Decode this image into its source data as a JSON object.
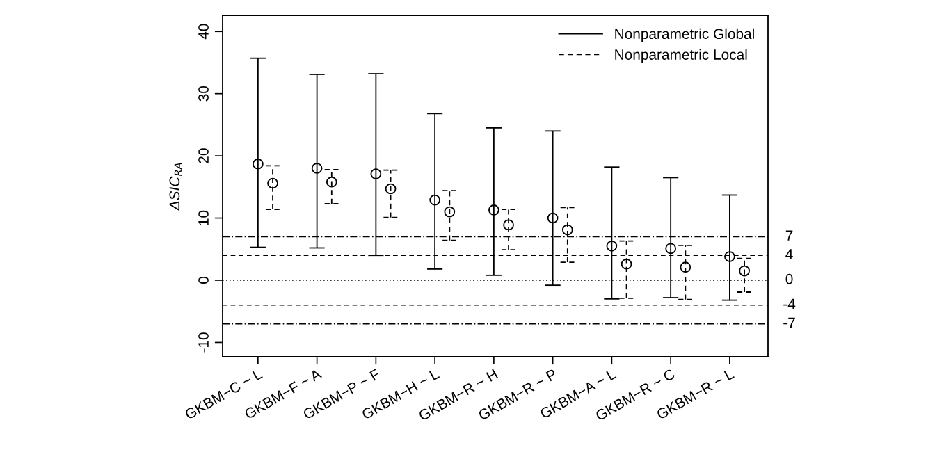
{
  "chart_data": {
    "type": "scatter",
    "categories": [
      "GKBM−C ~ L",
      "GKBM−F ~ A",
      "GKBM−P ~ F",
      "GKBM−H ~ L",
      "GKBM−R ~ H",
      "GKBM−R ~ P",
      "GKBM−A ~ L",
      "GKBM−R ~ C",
      "GKBM−R ~ L"
    ],
    "ylabel": "ΔSIC$_{RA}$",
    "ylim": [
      -12.3,
      42.6
    ],
    "yticks": [
      -10,
      0,
      10,
      20,
      30,
      40
    ],
    "marker": "circle",
    "legend": "top right",
    "grid": false,
    "series": [
      {
        "name": "Nonparametric Global",
        "color": "#000000",
        "line_style": "solid",
        "values": [
          18.7,
          18.0,
          17.1,
          12.9,
          11.3,
          10.0,
          5.5,
          5.1,
          3.8
        ],
        "errors": [
          [
            5.3,
            35.7
          ],
          [
            5.2,
            33.1
          ],
          [
            4.0,
            33.2
          ],
          [
            1.8,
            26.8
          ],
          [
            0.8,
            24.5
          ],
          [
            -0.8,
            24.0
          ],
          [
            -3.0,
            18.2
          ],
          [
            -2.8,
            16.5
          ],
          [
            -3.2,
            13.7
          ]
        ]
      },
      {
        "name": "Nonparametric Local",
        "color": "#000000",
        "line_style": "dashed",
        "values": [
          15.6,
          15.8,
          14.7,
          11.0,
          8.9,
          8.1,
          2.6,
          2.1,
          1.5
        ],
        "errors": [
          [
            11.4,
            18.4
          ],
          [
            12.3,
            17.8
          ],
          [
            10.1,
            17.7
          ],
          [
            6.4,
            14.4
          ],
          [
            4.9,
            11.4
          ],
          [
            2.9,
            11.7
          ],
          [
            -2.9,
            6.3
          ],
          [
            -3.1,
            5.6
          ],
          [
            -1.9,
            3.5
          ]
        ]
      }
    ],
    "ref_lines": [
      {
        "axis": "y",
        "value": 7,
        "label": "7",
        "line_style": "dashdot",
        "color": "#000000"
      },
      {
        "axis": "y",
        "value": 4,
        "label": "4",
        "line_style": "dashed",
        "color": "#000000"
      },
      {
        "axis": "y",
        "value": 0,
        "label": "0",
        "line_style": "dotted",
        "color": "#000000"
      },
      {
        "axis": "y",
        "value": -4,
        "label": "-4",
        "line_style": "dashed",
        "color": "#000000"
      },
      {
        "axis": "y",
        "value": -7,
        "label": "-7",
        "line_style": "dashdot",
        "color": "#000000"
      }
    ]
  }
}
